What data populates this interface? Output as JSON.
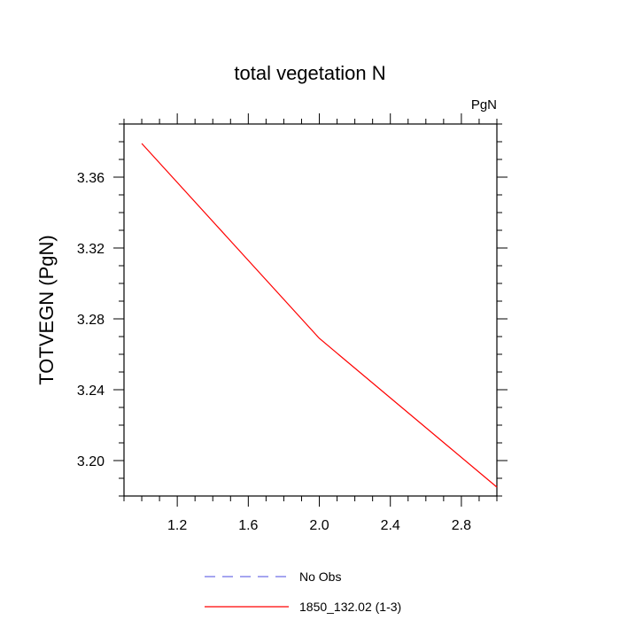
{
  "chart_data": {
    "type": "line",
    "title": "total vegetation N",
    "units_label": "PgN",
    "xlabel": "",
    "ylabel": "TOTVEGN  (PgN)",
    "xlim": [
      0.9,
      3.0
    ],
    "ylim": [
      3.18,
      3.39
    ],
    "x_ticks": [
      1.2,
      1.6,
      2.0,
      2.4,
      2.8
    ],
    "x_tick_labels": [
      "1.2",
      "1.6",
      "2.0",
      "2.4",
      "2.8"
    ],
    "y_ticks": [
      3.2,
      3.24,
      3.28,
      3.32,
      3.36
    ],
    "y_tick_labels": [
      "3.20",
      "3.24",
      "3.28",
      "3.32",
      "3.36"
    ],
    "series": [
      {
        "name": "No Obs",
        "x": [],
        "y": [],
        "color": "#6f6fe6",
        "dash": "dashed"
      },
      {
        "name": "1850_132.02 (1-3)",
        "x": [
          1.0,
          2.0,
          3.0
        ],
        "y": [
          3.379,
          3.269,
          3.185
        ],
        "color": "#ff0000",
        "dash": "solid"
      }
    ],
    "legend": {
      "placement": "bottom",
      "entries": [
        "No Obs",
        "1850_132.02 (1-3)"
      ]
    }
  }
}
